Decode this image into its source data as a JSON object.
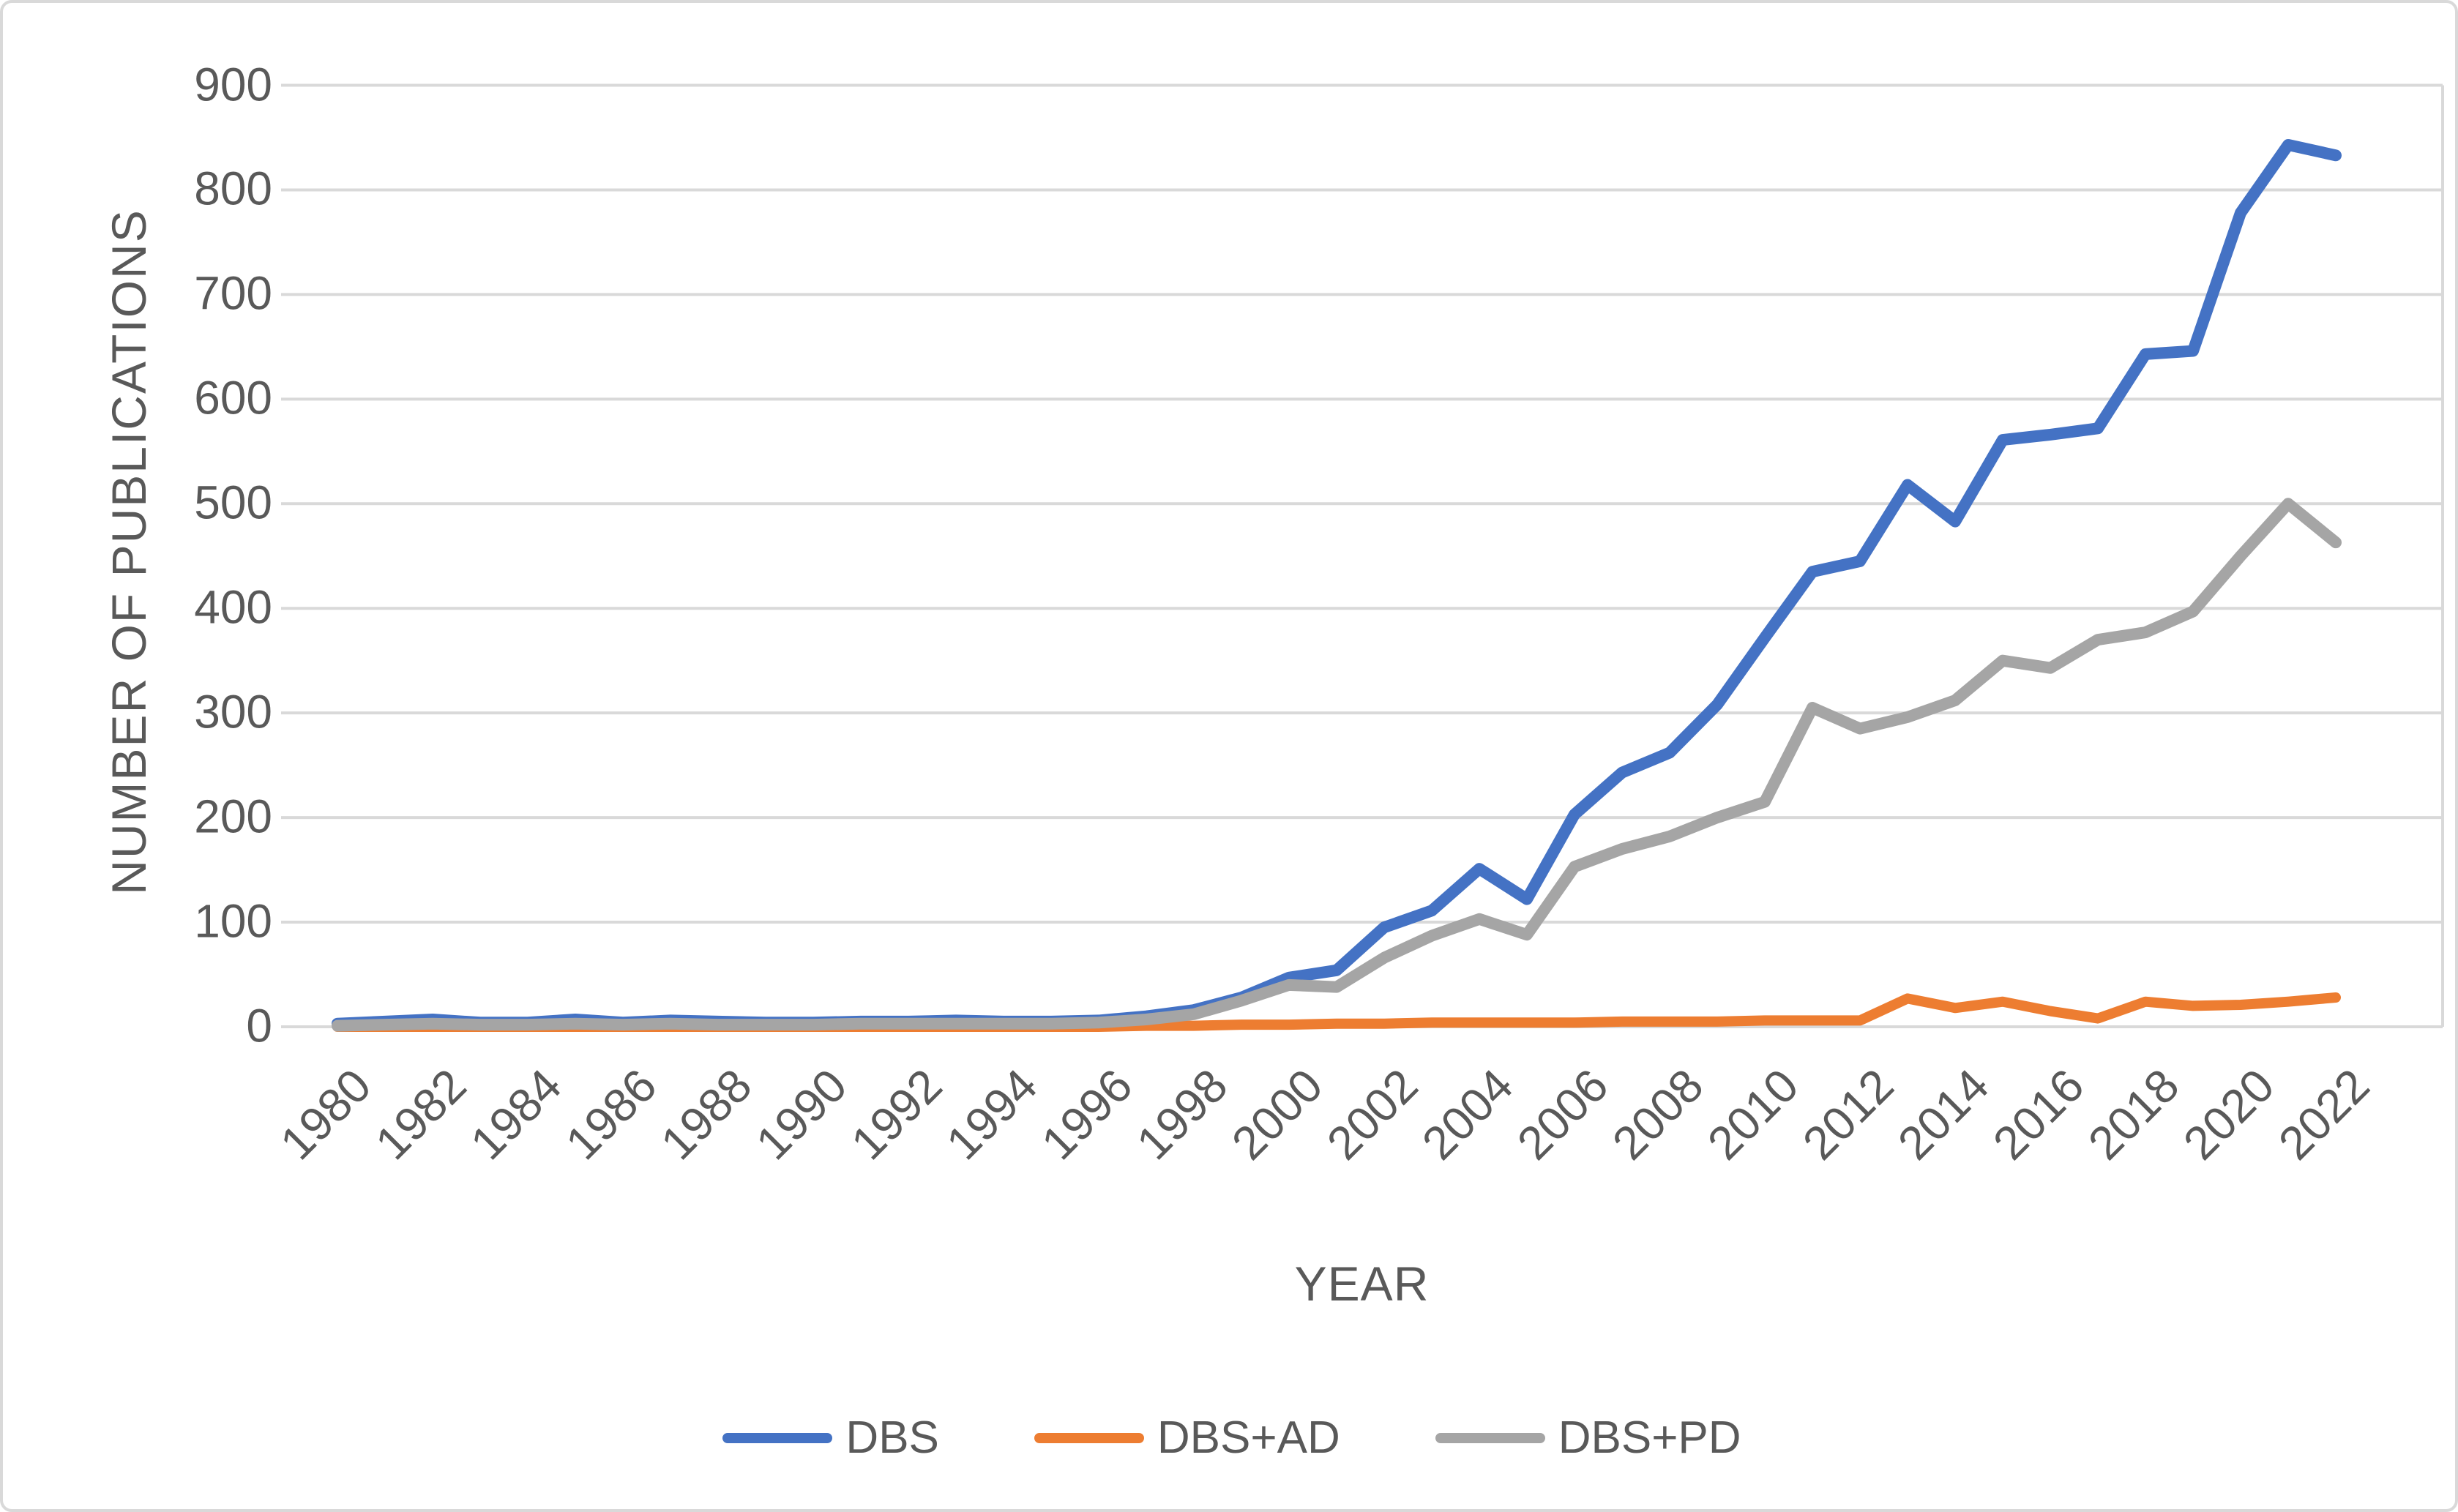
{
  "chart_data": {
    "type": "line",
    "title": "",
    "xlabel": "YEAR",
    "ylabel": "NUMBER OF PUBLICATIONS",
    "x": [
      1980,
      1981,
      1982,
      1983,
      1984,
      1985,
      1986,
      1987,
      1988,
      1989,
      1990,
      1991,
      1992,
      1993,
      1994,
      1995,
      1996,
      1997,
      1998,
      1999,
      2000,
      2001,
      2002,
      2003,
      2004,
      2005,
      2006,
      2007,
      2008,
      2009,
      2010,
      2011,
      2012,
      2013,
      2014,
      2015,
      2016,
      2017,
      2018,
      2019,
      2020,
      2021,
      2022
    ],
    "x_tick_labels": [
      "1980",
      "1982",
      "1984",
      "1986",
      "1988",
      "1990",
      "1992",
      "1994",
      "1996",
      "1998",
      "2000",
      "2002",
      "2004",
      "2006",
      "2008",
      "2010",
      "2012",
      "2014",
      "2016",
      "2018",
      "2020",
      "2022"
    ],
    "yticks": [
      0,
      100,
      200,
      300,
      400,
      500,
      600,
      700,
      800,
      900
    ],
    "ylim": [
      0,
      900
    ],
    "grid": true,
    "legend_position": "bottom",
    "series": [
      {
        "name": "DBS",
        "color": "#4472C4",
        "values": [
          3,
          5,
          7,
          4,
          4,
          7,
          4,
          6,
          5,
          4,
          4,
          5,
          5,
          6,
          5,
          5,
          6,
          10,
          16,
          28,
          47,
          54,
          95,
          111,
          151,
          122,
          203,
          243,
          262,
          308,
          372,
          435,
          445,
          518,
          483,
          561,
          566,
          572,
          643,
          646,
          778,
          843,
          833
        ]
      },
      {
        "name": "DBS+AD",
        "color": "#ED7D31",
        "values": [
          0,
          0,
          0,
          0,
          0,
          0,
          0,
          0,
          0,
          0,
          0,
          0,
          0,
          0,
          0,
          0,
          0,
          1,
          1,
          2,
          2,
          3,
          3,
          4,
          4,
          4,
          4,
          5,
          5,
          5,
          6,
          6,
          6,
          27,
          18,
          24,
          15,
          8,
          24,
          20,
          21,
          24,
          28
        ]
      },
      {
        "name": "DBS+PD",
        "color": "#A5A5A5",
        "values": [
          1,
          2,
          3,
          2,
          2,
          3,
          2,
          3,
          2,
          2,
          2,
          3,
          3,
          3,
          3,
          3,
          4,
          7,
          12,
          25,
          40,
          38,
          66,
          87,
          103,
          88,
          153,
          170,
          182,
          200,
          215,
          305,
          285,
          296,
          312,
          350,
          343,
          370,
          377,
          397,
          450,
          500,
          463
        ]
      }
    ],
    "gridline_color": "#D9D9D9",
    "text_color": "#595959"
  }
}
